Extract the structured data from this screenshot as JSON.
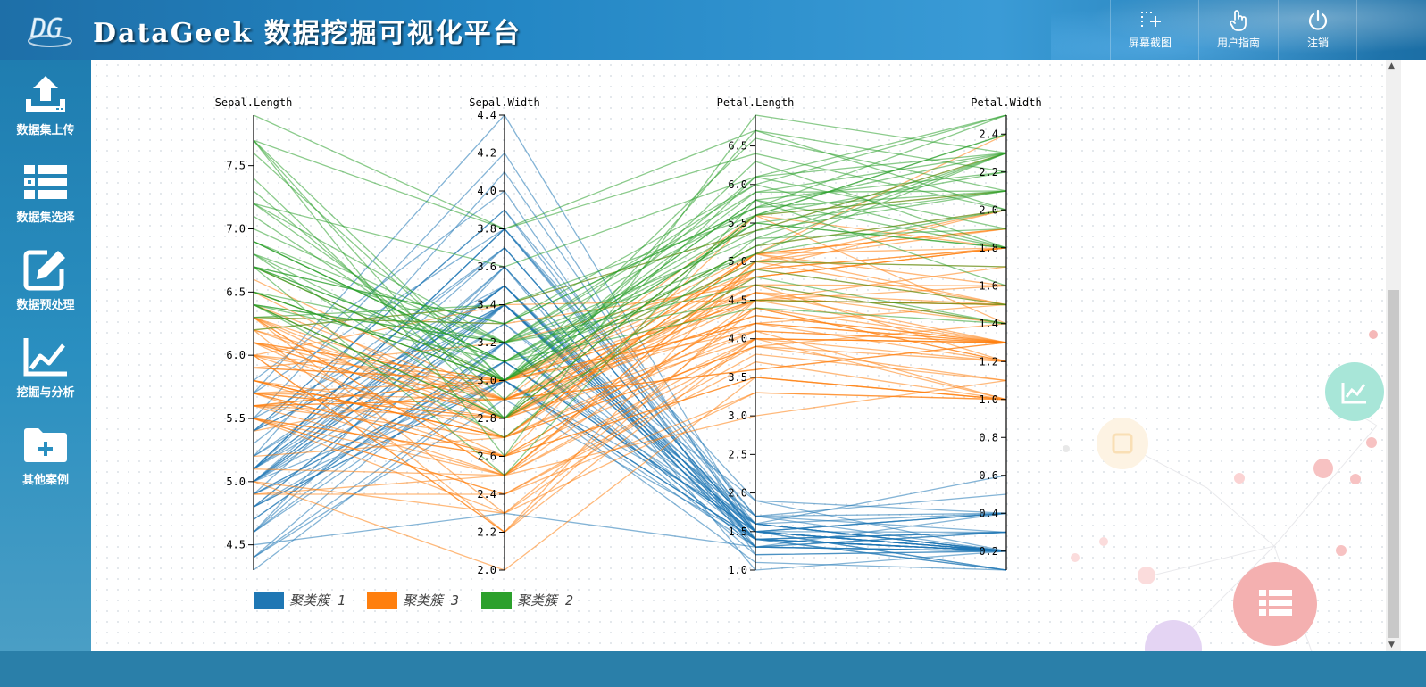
{
  "header": {
    "logo_text": "DG",
    "title": "DataGeek 数据挖掘可视化平台",
    "buttons": [
      {
        "label": "屏幕截图",
        "icon": "screenshot-icon"
      },
      {
        "label": "用户指南",
        "icon": "hand-pointer-icon"
      },
      {
        "label": "注销",
        "icon": "power-icon"
      }
    ]
  },
  "sidebar": {
    "items": [
      {
        "label": "数据集上传",
        "icon": "upload-icon"
      },
      {
        "label": "数据集选择",
        "icon": "list-icon"
      },
      {
        "label": "数据预处理",
        "icon": "edit-icon"
      },
      {
        "label": "挖掘与分析",
        "icon": "line-chart-icon"
      },
      {
        "label": "其他案例",
        "icon": "folder-plus-icon"
      }
    ]
  },
  "chart_data": {
    "type": "parallel-coordinates",
    "dimensions": [
      {
        "name": "Sepal.Length",
        "range": [
          4.3,
          7.9
        ],
        "ticks": [
          4.5,
          5.0,
          5.5,
          6.0,
          6.5,
          7.0,
          7.5
        ]
      },
      {
        "name": "Sepal.Width",
        "range": [
          2.0,
          4.4
        ],
        "ticks": [
          2.0,
          2.2,
          2.4,
          2.6,
          2.8,
          3.0,
          3.2,
          3.4,
          3.6,
          3.8,
          4.0,
          4.2,
          4.4
        ]
      },
      {
        "name": "Petal.Length",
        "range": [
          1.0,
          6.9
        ],
        "ticks": [
          1.0,
          1.5,
          2.0,
          2.5,
          3.0,
          3.5,
          4.0,
          4.5,
          5.0,
          5.5,
          6.0,
          6.5
        ]
      },
      {
        "name": "Petal.Width",
        "range": [
          0.1,
          2.5
        ],
        "ticks": [
          0.2,
          0.4,
          0.6,
          0.8,
          1.0,
          1.2,
          1.4,
          1.6,
          1.8,
          2.0,
          2.2,
          2.4
        ]
      }
    ],
    "legend": [
      {
        "name": "聚类簇 1",
        "color": "#1f77b4"
      },
      {
        "name": "聚类簇 3",
        "color": "#ff7f0e"
      },
      {
        "name": "聚类簇 2",
        "color": "#2ca02c"
      }
    ],
    "series": [
      {
        "name": "聚类簇 1",
        "color": "#1f77b4",
        "rows": [
          [
            5.1,
            3.5,
            1.4,
            0.2
          ],
          [
            4.9,
            3.0,
            1.4,
            0.2
          ],
          [
            4.7,
            3.2,
            1.3,
            0.2
          ],
          [
            4.6,
            3.1,
            1.5,
            0.2
          ],
          [
            5.0,
            3.6,
            1.4,
            0.2
          ],
          [
            5.4,
            3.9,
            1.7,
            0.4
          ],
          [
            4.6,
            3.4,
            1.4,
            0.3
          ],
          [
            5.0,
            3.4,
            1.5,
            0.2
          ],
          [
            4.4,
            2.9,
            1.4,
            0.2
          ],
          [
            4.9,
            3.1,
            1.5,
            0.1
          ],
          [
            5.4,
            3.7,
            1.5,
            0.2
          ],
          [
            4.8,
            3.4,
            1.6,
            0.2
          ],
          [
            4.8,
            3.0,
            1.4,
            0.1
          ],
          [
            4.3,
            3.0,
            1.1,
            0.1
          ],
          [
            5.8,
            4.0,
            1.2,
            0.2
          ],
          [
            5.7,
            4.4,
            1.5,
            0.4
          ],
          [
            5.4,
            3.9,
            1.3,
            0.4
          ],
          [
            5.1,
            3.5,
            1.4,
            0.3
          ],
          [
            5.7,
            3.8,
            1.7,
            0.3
          ],
          [
            5.1,
            3.8,
            1.5,
            0.3
          ],
          [
            5.4,
            3.4,
            1.7,
            0.2
          ],
          [
            5.1,
            3.7,
            1.5,
            0.4
          ],
          [
            4.6,
            3.6,
            1.0,
            0.2
          ],
          [
            5.1,
            3.3,
            1.7,
            0.5
          ],
          [
            4.8,
            3.4,
            1.9,
            0.2
          ],
          [
            5.0,
            3.0,
            1.6,
            0.2
          ],
          [
            5.0,
            3.4,
            1.6,
            0.4
          ],
          [
            5.2,
            3.5,
            1.5,
            0.2
          ],
          [
            5.2,
            3.4,
            1.4,
            0.2
          ],
          [
            4.7,
            3.2,
            1.6,
            0.2
          ],
          [
            4.8,
            3.1,
            1.6,
            0.2
          ],
          [
            5.4,
            3.4,
            1.5,
            0.4
          ],
          [
            5.2,
            4.1,
            1.5,
            0.1
          ],
          [
            5.5,
            4.2,
            1.4,
            0.2
          ],
          [
            4.9,
            3.1,
            1.5,
            0.2
          ],
          [
            5.0,
            3.2,
            1.2,
            0.2
          ],
          [
            5.5,
            3.5,
            1.3,
            0.2
          ],
          [
            4.9,
            3.6,
            1.4,
            0.1
          ],
          [
            4.4,
            3.0,
            1.3,
            0.2
          ],
          [
            5.1,
            3.4,
            1.5,
            0.2
          ],
          [
            5.0,
            3.5,
            1.3,
            0.3
          ],
          [
            4.5,
            2.3,
            1.3,
            0.3
          ],
          [
            4.4,
            3.2,
            1.3,
            0.2
          ],
          [
            5.0,
            3.5,
            1.6,
            0.6
          ],
          [
            5.1,
            3.8,
            1.9,
            0.4
          ],
          [
            4.8,
            3.0,
            1.4,
            0.3
          ],
          [
            5.1,
            3.8,
            1.6,
            0.2
          ],
          [
            4.6,
            3.2,
            1.4,
            0.2
          ],
          [
            5.3,
            3.7,
            1.5,
            0.2
          ],
          [
            5.0,
            3.3,
            1.4,
            0.2
          ]
        ]
      },
      {
        "name": "聚类簇 3",
        "color": "#ff7f0e",
        "rows": [
          [
            5.5,
            2.3,
            4.0,
            1.3
          ],
          [
            6.5,
            2.8,
            4.6,
            1.5
          ],
          [
            5.7,
            2.8,
            4.5,
            1.3
          ],
          [
            6.3,
            3.3,
            4.7,
            1.6
          ],
          [
            4.9,
            2.4,
            3.3,
            1.0
          ],
          [
            6.6,
            2.9,
            4.6,
            1.3
          ],
          [
            5.2,
            2.7,
            3.9,
            1.4
          ],
          [
            5.0,
            2.0,
            3.5,
            1.0
          ],
          [
            5.9,
            3.0,
            4.2,
            1.5
          ],
          [
            6.0,
            2.2,
            4.0,
            1.0
          ],
          [
            6.1,
            2.9,
            4.7,
            1.4
          ],
          [
            5.6,
            2.9,
            3.6,
            1.3
          ],
          [
            5.6,
            3.0,
            4.5,
            1.5
          ],
          [
            5.8,
            2.7,
            4.1,
            1.0
          ],
          [
            6.2,
            2.2,
            4.5,
            1.5
          ],
          [
            5.6,
            2.5,
            3.9,
            1.1
          ],
          [
            5.9,
            3.2,
            4.8,
            1.8
          ],
          [
            6.1,
            2.8,
            4.0,
            1.3
          ],
          [
            6.3,
            2.5,
            4.9,
            1.5
          ],
          [
            6.1,
            2.8,
            4.7,
            1.2
          ],
          [
            6.4,
            2.9,
            4.3,
            1.3
          ],
          [
            6.0,
            2.9,
            4.5,
            1.5
          ],
          [
            5.7,
            2.6,
            3.5,
            1.0
          ],
          [
            5.5,
            2.4,
            3.8,
            1.1
          ],
          [
            5.5,
            2.4,
            3.7,
            1.0
          ],
          [
            5.8,
            2.7,
            3.9,
            1.2
          ],
          [
            6.0,
            2.7,
            5.1,
            1.6
          ],
          [
            5.4,
            3.0,
            4.5,
            1.5
          ],
          [
            6.0,
            3.4,
            4.5,
            1.6
          ],
          [
            6.3,
            2.3,
            4.4,
            1.3
          ],
          [
            5.6,
            3.0,
            4.1,
            1.3
          ],
          [
            5.5,
            2.5,
            4.0,
            1.3
          ],
          [
            5.5,
            2.6,
            4.4,
            1.2
          ],
          [
            6.1,
            3.0,
            4.6,
            1.4
          ],
          [
            5.8,
            2.6,
            4.0,
            1.2
          ],
          [
            5.0,
            2.3,
            3.3,
            1.0
          ],
          [
            5.6,
            2.7,
            4.2,
            1.3
          ],
          [
            5.7,
            3.0,
            4.2,
            1.2
          ],
          [
            5.7,
            2.9,
            4.2,
            1.3
          ],
          [
            6.2,
            2.9,
            4.3,
            1.3
          ],
          [
            5.1,
            2.5,
            3.0,
            1.1
          ],
          [
            5.7,
            2.8,
            4.1,
            1.3
          ],
          [
            5.8,
            2.7,
            5.1,
            1.9
          ],
          [
            4.9,
            2.5,
            4.5,
            1.7
          ],
          [
            5.7,
            2.5,
            5.0,
            2.0
          ],
          [
            5.8,
            2.8,
            5.1,
            2.4
          ],
          [
            6.0,
            2.2,
            5.0,
            1.5
          ],
          [
            5.6,
            2.8,
            4.9,
            2.0
          ],
          [
            6.2,
            2.8,
            4.8,
            1.8
          ],
          [
            6.1,
            3.0,
            4.9,
            1.8
          ],
          [
            6.3,
            2.7,
            4.9,
            1.8
          ],
          [
            6.0,
            3.0,
            4.8,
            1.8
          ],
          [
            5.8,
            2.7,
            5.1,
            1.9
          ],
          [
            6.3,
            2.5,
            5.0,
            1.9
          ],
          [
            5.9,
            3.0,
            5.1,
            1.8
          ],
          [
            6.5,
            3.0,
            5.2,
            2.0
          ],
          [
            6.2,
            3.4,
            5.4,
            2.3
          ],
          [
            5.5,
            2.6,
            4.4,
            1.2
          ],
          [
            6.1,
            2.6,
            5.6,
            1.4
          ],
          [
            6.3,
            2.8,
            5.1,
            1.5
          ],
          [
            6.4,
            2.8,
            5.6,
            2.1
          ],
          [
            5.7,
            2.6,
            3.5,
            1.0
          ],
          [
            6.7,
            3.0,
            5.0,
            1.7
          ],
          [
            5.6,
            2.9,
            3.6,
            1.3
          ],
          [
            6.3,
            2.9,
            5.6,
            1.8
          ]
        ]
      },
      {
        "name": "聚类簇 2",
        "color": "#2ca02c",
        "rows": [
          [
            7.0,
            3.2,
            4.7,
            1.4
          ],
          [
            6.4,
            3.2,
            4.5,
            1.5
          ],
          [
            6.9,
            3.1,
            4.9,
            1.5
          ],
          [
            6.7,
            3.1,
            4.4,
            1.4
          ],
          [
            6.8,
            2.8,
            4.8,
            1.4
          ],
          [
            6.7,
            3.0,
            5.0,
            1.7
          ],
          [
            6.3,
            3.3,
            6.0,
            2.5
          ],
          [
            7.1,
            3.0,
            5.9,
            2.1
          ],
          [
            6.5,
            3.0,
            5.8,
            2.2
          ],
          [
            7.6,
            3.0,
            6.6,
            2.1
          ],
          [
            7.3,
            2.9,
            6.3,
            1.8
          ],
          [
            6.7,
            2.5,
            5.8,
            1.8
          ],
          [
            7.2,
            3.6,
            6.1,
            2.5
          ],
          [
            6.5,
            3.2,
            5.1,
            2.0
          ],
          [
            6.4,
            2.7,
            5.3,
            1.9
          ],
          [
            6.8,
            3.0,
            5.5,
            2.1
          ],
          [
            6.4,
            3.2,
            5.3,
            2.3
          ],
          [
            6.5,
            3.0,
            5.5,
            1.8
          ],
          [
            7.7,
            3.8,
            6.7,
            2.2
          ],
          [
            7.7,
            2.6,
            6.9,
            2.3
          ],
          [
            6.9,
            3.2,
            5.7,
            2.3
          ],
          [
            7.7,
            2.8,
            6.7,
            2.0
          ],
          [
            6.7,
            3.3,
            5.7,
            2.1
          ],
          [
            7.2,
            3.2,
            6.0,
            1.8
          ],
          [
            6.4,
            2.8,
            5.6,
            2.1
          ],
          [
            7.2,
            3.0,
            5.8,
            1.6
          ],
          [
            7.4,
            2.8,
            6.1,
            1.9
          ],
          [
            7.9,
            3.8,
            6.4,
            2.0
          ],
          [
            6.4,
            2.8,
            5.6,
            2.2
          ],
          [
            7.7,
            3.0,
            6.1,
            2.3
          ],
          [
            6.3,
            3.4,
            5.6,
            2.4
          ],
          [
            6.4,
            3.1,
            5.5,
            1.8
          ],
          [
            6.9,
            3.1,
            5.4,
            2.1
          ],
          [
            6.7,
            3.1,
            5.6,
            2.4
          ],
          [
            6.9,
            3.1,
            5.1,
            2.3
          ],
          [
            6.8,
            3.2,
            5.9,
            2.3
          ],
          [
            6.7,
            3.3,
            5.7,
            2.5
          ],
          [
            6.7,
            3.0,
            5.2,
            2.3
          ],
          [
            6.5,
            3.0,
            5.2,
            2.0
          ],
          [
            6.2,
            3.4,
            5.4,
            2.3
          ]
        ]
      }
    ]
  }
}
